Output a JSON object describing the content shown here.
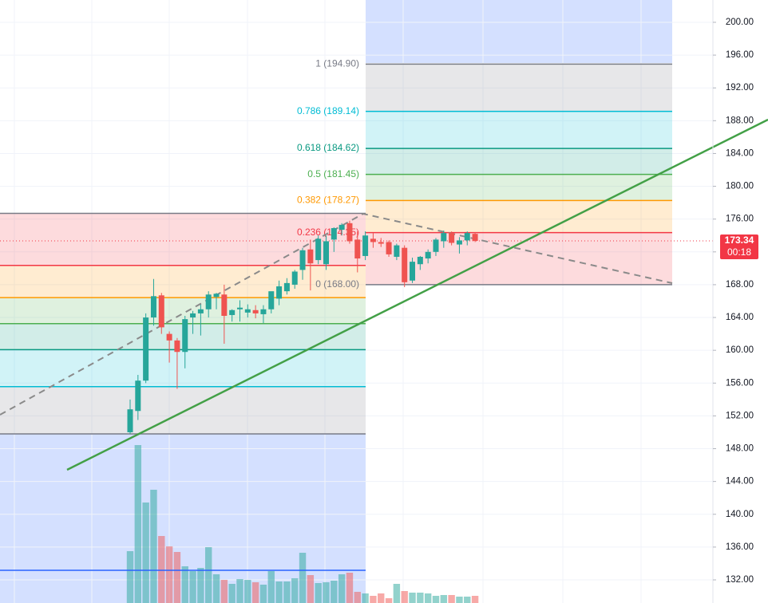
{
  "chart_data": {
    "type": "candlestick",
    "candles": {
      "open": [
        150.0,
        152.6,
        156.3,
        164.0,
        166.7,
        162.0,
        161.2,
        159.8,
        164.0,
        164.5,
        165.0,
        166.5,
        166.8,
        164.3,
        165.0,
        164.6,
        164.9,
        164.4,
        165.0,
        166.3,
        167.2,
        168.0,
        169.8,
        172.3,
        171.0,
        170.5,
        173.5,
        174.7,
        175.5,
        173.5,
        171.5,
        173.6,
        173.2,
        173.2,
        171.4,
        172.5,
        168.5,
        170.5,
        171.2,
        172.0,
        173.3,
        174.3,
        172.9,
        173.4,
        174.2
      ],
      "high": [
        154.0,
        157.0,
        164.5,
        168.7,
        167.0,
        162.3,
        161.5,
        164.2,
        164.8,
        165.6,
        167.2,
        167.0,
        168.0,
        165.0,
        166.1,
        165.6,
        165.5,
        165.5,
        167.0,
        168.5,
        168.8,
        169.8,
        172.5,
        173.5,
        174.0,
        174.0,
        175.0,
        175.5,
        175.8,
        174.5,
        174.5,
        174.3,
        173.7,
        173.4,
        173.0,
        172.8,
        171.3,
        171.5,
        172.3,
        173.7,
        174.6,
        174.5,
        173.8,
        174.5,
        174.4
      ],
      "low": [
        149.8,
        151.5,
        156.0,
        163.0,
        162.0,
        158.5,
        155.3,
        157.8,
        162.0,
        161.8,
        164.0,
        165.0,
        160.8,
        163.5,
        163.5,
        164.0,
        163.9,
        163.3,
        164.5,
        165.5,
        166.8,
        167.5,
        168.6,
        167.3,
        170.5,
        169.8,
        172.0,
        174.0,
        173.0,
        169.5,
        171.0,
        172.5,
        172.6,
        171.4,
        171.0,
        167.7,
        168.2,
        169.8,
        170.6,
        171.5,
        172.5,
        172.8,
        171.8,
        172.8,
        173.2
      ],
      "close": [
        152.8,
        156.3,
        164.0,
        166.6,
        162.8,
        161.2,
        159.8,
        163.8,
        164.5,
        165.0,
        166.8,
        166.9,
        164.2,
        164.9,
        165.2,
        165.0,
        164.5,
        165.0,
        167.2,
        167.8,
        168.2,
        169.6,
        172.2,
        170.6,
        173.6,
        173.3,
        174.9,
        175.3,
        173.3,
        171.2,
        174.0,
        173.2,
        173.0,
        171.7,
        172.8,
        168.3,
        170.8,
        171.4,
        172.0,
        173.5,
        174.3,
        173.1,
        173.4,
        174.3,
        173.34
      ]
    },
    "up_color": "#26a69a",
    "down_color": "#ef5350",
    "volume": [
      65,
      198,
      126,
      142,
      84,
      71,
      64,
      46,
      40,
      44,
      70,
      36,
      29,
      24,
      30,
      29,
      26,
      23,
      40,
      27,
      27,
      31,
      63,
      35,
      25,
      26,
      28,
      36,
      38,
      14,
      12,
      9,
      12,
      6,
      24,
      15,
      13,
      13,
      12,
      9,
      10,
      10,
      8,
      8,
      9
    ],
    "vlim": [
      0,
      200
    ],
    "volume_ma": 41,
    "ylim": [
      129.18,
      202.72
    ],
    "yticks": [
      {
        "value": 132,
        "label": "132.00"
      },
      {
        "value": 136,
        "label": "136.00"
      },
      {
        "value": 140,
        "label": "140.00"
      },
      {
        "value": 144,
        "label": "144.00"
      },
      {
        "value": 148,
        "label": "148.00"
      },
      {
        "value": 152,
        "label": "152.00"
      },
      {
        "value": 156,
        "label": "156.00"
      },
      {
        "value": 160,
        "label": "160.00"
      },
      {
        "value": 164,
        "label": "164.00"
      },
      {
        "value": 168,
        "label": "168.00"
      },
      {
        "value": 172,
        "label": "172.00"
      },
      {
        "value": 176,
        "label": "176.00"
      },
      {
        "value": 180,
        "label": "180.00"
      },
      {
        "value": 184,
        "label": "184.00"
      },
      {
        "value": 188,
        "label": "188.00"
      },
      {
        "value": 192,
        "label": "192.00"
      },
      {
        "value": 196,
        "label": "196.00"
      },
      {
        "value": 200,
        "label": "200.00"
      }
    ],
    "grid": true,
    "last_price": 173.34,
    "countdown": "00:18",
    "fib": {
      "levels": [
        {
          "value": 168.0,
          "label": "0 (168.00)",
          "color": "#787b86"
        },
        {
          "value": 174.35,
          "label": "0.236 (174.35)",
          "color": "#f23645"
        },
        {
          "value": 178.27,
          "label": "0.382 (178.27)",
          "color": "#ff9800"
        },
        {
          "value": 181.45,
          "label": "0.5 (181.45)",
          "color": "#4caf50"
        },
        {
          "value": 184.62,
          "label": "0.618 (184.62)",
          "color": "#089981"
        },
        {
          "value": 189.14,
          "label": "0.786 (189.14)",
          "color": "#00bcd4"
        },
        {
          "value": 194.9,
          "label": "1 (194.90)",
          "color": "#787b86"
        }
      ]
    },
    "fib_prev": {
      "levels": [
        {
          "value": 176.7,
          "color": "#787b86"
        },
        {
          "value": 170.35,
          "color": "#f23645"
        },
        {
          "value": 166.42,
          "color": "#ff9800"
        },
        {
          "value": 163.25,
          "color": "#4caf50"
        },
        {
          "value": 160.08,
          "color": "#089981"
        },
        {
          "value": 155.56,
          "color": "#00bcd4"
        },
        {
          "value": 149.8,
          "color": "#787b86"
        }
      ]
    }
  }
}
